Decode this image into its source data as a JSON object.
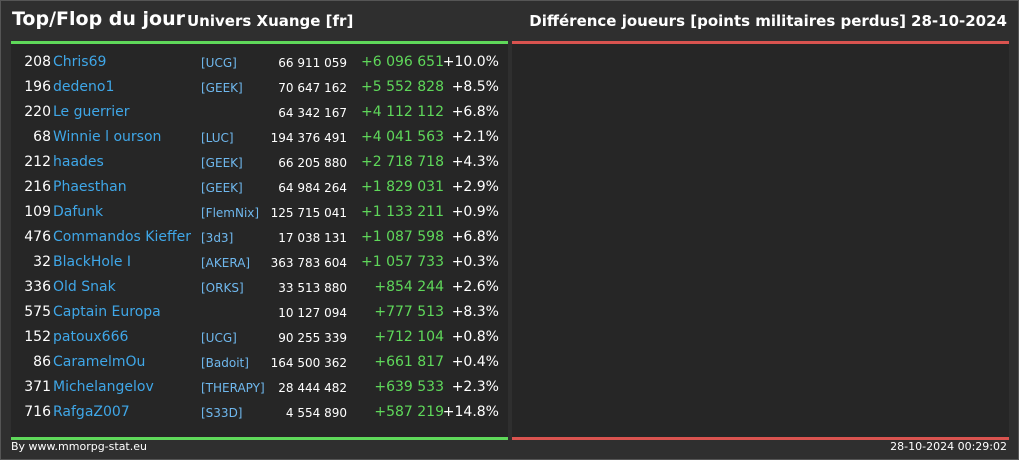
{
  "header": {
    "title": "Top/Flop du jour",
    "univers": "Univers Xuange [fr]",
    "difference_label": "Différence joueurs [points militaires perdus]",
    "date": "28-10-2024"
  },
  "rows": [
    {
      "rank": "208",
      "name": "Chris69",
      "alliance": "[UCG]",
      "points": "66 911 059",
      "diff": "+6 096 651",
      "pct": "+10.0%"
    },
    {
      "rank": "196",
      "name": "dedeno1",
      "alliance": "[GEEK]",
      "points": "70 647 162",
      "diff": "+5 552 828",
      "pct": "+8.5%"
    },
    {
      "rank": "220",
      "name": "Le guerrier",
      "alliance": "",
      "points": "64 342 167",
      "diff": "+4 112 112",
      "pct": "+6.8%"
    },
    {
      "rank": "68",
      "name": "Winnie l ourson",
      "alliance": "[LUC]",
      "points": "194 376 491",
      "diff": "+4 041 563",
      "pct": "+2.1%"
    },
    {
      "rank": "212",
      "name": "haades",
      "alliance": "[GEEK]",
      "points": "66 205 880",
      "diff": "+2 718 718",
      "pct": "+4.3%"
    },
    {
      "rank": "216",
      "name": "Phaesthan",
      "alliance": "[GEEK]",
      "points": "64 984 264",
      "diff": "+1 829 031",
      "pct": "+2.9%"
    },
    {
      "rank": "109",
      "name": "Dafunk",
      "alliance": "[FlemNix]",
      "points": "125 715 041",
      "diff": "+1 133 211",
      "pct": "+0.9%"
    },
    {
      "rank": "476",
      "name": "Commandos Kieffer",
      "alliance": "[3d3]",
      "points": "17 038 131",
      "diff": "+1 087 598",
      "pct": "+6.8%"
    },
    {
      "rank": "32",
      "name": "BlackHole I",
      "alliance": "[AKERA]",
      "points": "363 783 604",
      "diff": "+1 057 733",
      "pct": "+0.3%"
    },
    {
      "rank": "336",
      "name": "Old Snak",
      "alliance": "[ORKS]",
      "points": "33 513 880",
      "diff": "+854 244",
      "pct": "+2.6%"
    },
    {
      "rank": "575",
      "name": "Captain Europa",
      "alliance": "",
      "points": "10 127 094",
      "diff": "+777 513",
      "pct": "+8.3%"
    },
    {
      "rank": "152",
      "name": "patoux666",
      "alliance": "[UCG]",
      "points": "90 255 339",
      "diff": "+712 104",
      "pct": "+0.8%"
    },
    {
      "rank": "86",
      "name": "CaramelmOu",
      "alliance": "[Badoit]",
      "points": "164 500 362",
      "diff": "+661 817",
      "pct": "+0.4%"
    },
    {
      "rank": "371",
      "name": "Michelangelov",
      "alliance": "[THERAPY]",
      "points": "28 444 482",
      "diff": "+639 533",
      "pct": "+2.3%"
    },
    {
      "rank": "716",
      "name": "RafgaZ007",
      "alliance": "[S33D]",
      "points": "4 554 890",
      "diff": "+587 219",
      "pct": "+14.8%"
    }
  ],
  "footer": {
    "credit": "By www.mmorpg-stat.eu",
    "timestamp": "28-10-2024 00:29:02"
  },
  "colors": {
    "top_accent": "#5fd85a",
    "flop_accent": "#d9534f",
    "name": "#3fa7e8",
    "alliance": "#6fb8ee",
    "positive": "#5fd85a"
  }
}
